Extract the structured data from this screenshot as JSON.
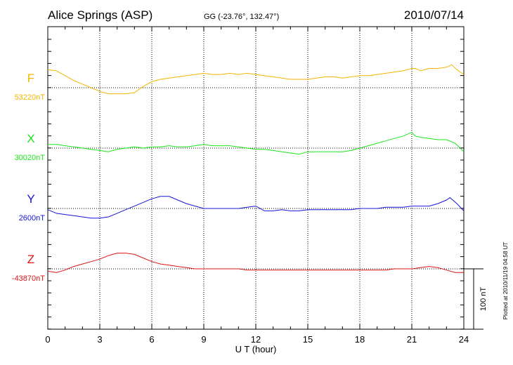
{
  "header": {
    "station": "Alice Springs (ASP)",
    "coords": "GG (-23.76°, 132.47°)",
    "date": "2010/07/14"
  },
  "footer": {
    "plotted": "Plotted at 2010/11/19 04:58 UT"
  },
  "chart_data": {
    "type": "line",
    "xlabel": "U T (hour)",
    "xlim": [
      0,
      24
    ],
    "xticks": [
      "0",
      "3",
      "6",
      "9",
      "12",
      "15",
      "18",
      "21",
      "24"
    ],
    "scale_bar": {
      "label": "100 nT",
      "value_nT": 100
    },
    "grid": true,
    "series": [
      {
        "name": "F",
        "baseline_label": "53220nT",
        "baseline_nT": 53220,
        "color": "#f5b400",
        "x": [
          0,
          0.5,
          1,
          1.5,
          2,
          2.5,
          3,
          3.5,
          4,
          4.5,
          5,
          5.5,
          6,
          6.5,
          7,
          7.5,
          8,
          8.5,
          9,
          9.5,
          10,
          10.5,
          11,
          11.5,
          12,
          12.5,
          13,
          13.5,
          14,
          14.5,
          15,
          15.5,
          16,
          16.5,
          17,
          17.5,
          18,
          18.5,
          19,
          19.5,
          20,
          20.5,
          21,
          21.2,
          21.5,
          22,
          22.5,
          23,
          23.3,
          23.6,
          24
        ],
        "values": [
          53250,
          53248,
          53240,
          53232,
          53226,
          53220,
          53214,
          53210,
          53210,
          53210,
          53212,
          53222,
          53230,
          53234,
          53236,
          53238,
          53240,
          53242,
          53244,
          53242,
          53242,
          53244,
          53242,
          53244,
          53242,
          53240,
          53238,
          53236,
          53234,
          53234,
          53234,
          53236,
          53238,
          53238,
          53236,
          53238,
          53240,
          53240,
          53242,
          53244,
          53246,
          53248,
          53252,
          53252,
          53248,
          53252,
          53252,
          53254,
          53258,
          53250,
          53242
        ]
      },
      {
        "name": "X",
        "baseline_label": "30020nT",
        "baseline_nT": 30020,
        "color": "#19e619",
        "x": [
          0,
          0.5,
          1,
          1.5,
          2,
          2.5,
          3,
          3.5,
          4,
          4.5,
          5,
          5.5,
          6,
          6.5,
          7,
          7.5,
          8,
          8.5,
          9,
          9.5,
          10,
          10.5,
          11,
          11.5,
          12,
          12.5,
          13,
          13.5,
          14,
          14.5,
          15,
          15.5,
          16,
          16.5,
          17,
          17.5,
          18,
          18.5,
          19,
          19.5,
          20,
          20.5,
          21,
          21.2,
          21.5,
          22,
          22.5,
          23,
          23.5,
          24
        ],
        "values": [
          30026,
          30026,
          30024,
          30022,
          30020,
          30018,
          30016,
          30014,
          30018,
          30020,
          30022,
          30020,
          30022,
          30022,
          30024,
          30022,
          30022,
          30024,
          30026,
          30024,
          30024,
          30024,
          30022,
          30020,
          30018,
          30018,
          30016,
          30014,
          30012,
          30010,
          30014,
          30014,
          30014,
          30014,
          30014,
          30016,
          30020,
          30024,
          30028,
          30032,
          30036,
          30040,
          30046,
          30040,
          30038,
          30036,
          30034,
          30034,
          30028,
          30014
        ]
      },
      {
        "name": "Y",
        "baseline_label": "2600nT",
        "baseline_nT": 2600,
        "color": "#1414dc",
        "x": [
          0,
          0.5,
          1,
          1.5,
          2,
          2.5,
          3,
          3.5,
          4,
          4.5,
          5,
          5.5,
          6,
          6.5,
          7,
          7.5,
          8,
          8.5,
          9,
          9.5,
          10,
          10.5,
          11,
          11.5,
          12,
          12.5,
          13,
          13.5,
          14,
          14.5,
          15,
          15.5,
          16,
          16.5,
          17,
          17.5,
          18,
          18.5,
          19,
          19.5,
          20,
          20.5,
          21,
          21.5,
          22,
          22.5,
          23,
          23.2,
          23.6,
          24
        ],
        "values": [
          2598,
          2592,
          2590,
          2588,
          2586,
          2584,
          2584,
          2586,
          2592,
          2598,
          2604,
          2610,
          2616,
          2620,
          2620,
          2614,
          2608,
          2604,
          2600,
          2600,
          2600,
          2600,
          2600,
          2602,
          2604,
          2596,
          2596,
          2598,
          2596,
          2596,
          2598,
          2598,
          2598,
          2598,
          2598,
          2598,
          2600,
          2600,
          2600,
          2602,
          2602,
          2602,
          2604,
          2604,
          2604,
          2608,
          2614,
          2618,
          2608,
          2596
        ]
      },
      {
        "name": "Z",
        "baseline_label": "-43870nT",
        "baseline_nT": -43870,
        "color": "#dc1414",
        "x": [
          0,
          0.5,
          1,
          1.5,
          2,
          2.5,
          3,
          3.5,
          4,
          4.5,
          5,
          5.5,
          6,
          6.5,
          7,
          7.5,
          8,
          8.5,
          9,
          9.5,
          10,
          10.5,
          11,
          11.5,
          12,
          12.5,
          13,
          13.5,
          14,
          14.5,
          15,
          15.5,
          16,
          16.5,
          17,
          17.5,
          18,
          18.5,
          19,
          19.5,
          20,
          20.5,
          21,
          21.5,
          22,
          22.5,
          23,
          23.5,
          24
        ],
        "values": [
          -43874,
          -43876,
          -43872,
          -43866,
          -43862,
          -43858,
          -43854,
          -43848,
          -43844,
          -43844,
          -43846,
          -43852,
          -43858,
          -43862,
          -43864,
          -43866,
          -43868,
          -43870,
          -43870,
          -43870,
          -43870,
          -43870,
          -43870,
          -43872,
          -43872,
          -43872,
          -43872,
          -43872,
          -43872,
          -43872,
          -43872,
          -43872,
          -43872,
          -43872,
          -43872,
          -43872,
          -43872,
          -43872,
          -43872,
          -43872,
          -43870,
          -43870,
          -43870,
          -43868,
          -43866,
          -43868,
          -43872,
          -43876,
          -43876
        ]
      }
    ]
  }
}
